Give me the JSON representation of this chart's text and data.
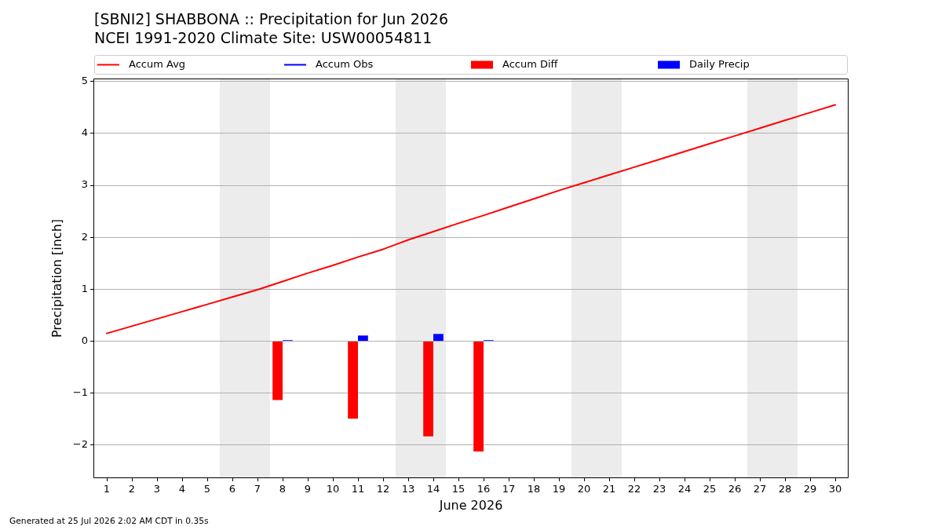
{
  "chart_data": {
    "type": "bar",
    "title": "[SBNI2] SHABBONA :: Precipitation for Jun 2026",
    "subtitle": "NCEI 1991-2020 Climate Site: USW00054811",
    "xlabel": "June 2026",
    "ylabel": "Precipitation [inch]",
    "annotations": [
      "Generated at 25 Jul 2026 2:02 AM CDT in 0.35s"
    ],
    "x": [
      1,
      2,
      3,
      4,
      5,
      6,
      7,
      8,
      9,
      10,
      11,
      12,
      13,
      14,
      15,
      16,
      17,
      18,
      19,
      20,
      21,
      22,
      23,
      24,
      25,
      26,
      27,
      28,
      29,
      30
    ],
    "series": [
      {
        "name": "Accum Avg",
        "type": "line",
        "color": "#ff0000",
        "values": [
          0.15,
          0.29,
          0.43,
          0.57,
          0.71,
          0.85,
          0.99,
          1.15,
          1.31,
          1.46,
          1.62,
          1.77,
          1.95,
          2.11,
          2.27,
          2.42,
          2.58,
          2.74,
          2.9,
          3.05,
          3.2,
          3.35,
          3.5,
          3.65,
          3.8,
          3.95,
          4.1,
          4.25,
          4.4,
          4.55
        ]
      },
      {
        "name": "Accum Obs",
        "type": "line",
        "color": "#0000ff",
        "values": [
          null,
          null,
          null,
          null,
          null,
          null,
          null,
          null,
          null,
          null,
          null,
          null,
          null,
          null,
          null,
          null,
          null,
          null,
          null,
          null,
          null,
          null,
          null,
          null,
          null,
          null,
          null,
          null,
          null,
          null
        ]
      },
      {
        "name": "Accum Diff",
        "color": "#ff0000",
        "values": [
          null,
          null,
          null,
          null,
          null,
          null,
          null,
          -1.13,
          null,
          null,
          -1.49,
          null,
          null,
          -1.83,
          null,
          -2.12,
          null,
          null,
          null,
          null,
          null,
          null,
          null,
          null,
          null,
          null,
          null,
          null,
          null,
          null
        ]
      },
      {
        "name": "Daily Precip",
        "color": "#0000ff",
        "values": [
          null,
          null,
          null,
          null,
          null,
          null,
          null,
          0.02,
          null,
          null,
          0.11,
          null,
          null,
          0.14,
          null,
          0.02,
          null,
          null,
          null,
          null,
          null,
          null,
          null,
          null,
          null,
          null,
          null,
          null,
          null,
          null
        ]
      }
    ],
    "xlim": [
      0.5,
      30.5
    ],
    "xticks": [
      1,
      2,
      3,
      4,
      5,
      6,
      7,
      8,
      9,
      10,
      11,
      12,
      13,
      14,
      15,
      16,
      17,
      18,
      19,
      20,
      21,
      22,
      23,
      24,
      25,
      26,
      27,
      28,
      29,
      30
    ],
    "ylim": [
      -2.62,
      5.04
    ],
    "yticks": [
      {
        "value": -2,
        "label": "−2"
      },
      {
        "value": -1,
        "label": "−1"
      },
      0,
      1,
      2,
      3,
      4,
      5
    ],
    "bands": [
      {
        "axis": "x",
        "from": 5.5,
        "to": 7.5,
        "color": "#ececec"
      },
      {
        "axis": "x",
        "from": 12.5,
        "to": 14.5,
        "color": "#ececec"
      },
      {
        "axis": "x",
        "from": 19.5,
        "to": 21.5,
        "color": "#ececec"
      },
      {
        "axis": "x",
        "from": 26.5,
        "to": 28.5,
        "color": "#ececec"
      }
    ],
    "grid": "y",
    "legend": "top",
    "marker": "none",
    "line_style": "solid"
  }
}
